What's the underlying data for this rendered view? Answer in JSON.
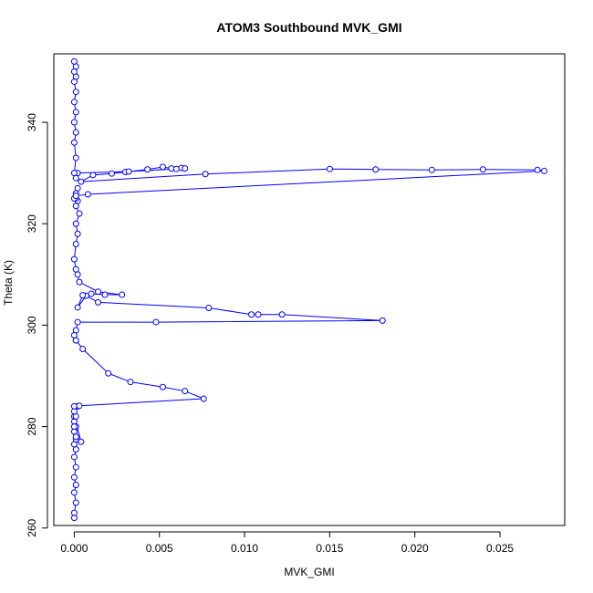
{
  "chart_data": {
    "type": "line",
    "title": "ATOM3 Southbound MVK_GMI",
    "xlabel": "MVK_GMI",
    "ylabel": "Theta (K)",
    "xlim": [
      -0.0012,
      0.0288
    ],
    "ylim": [
      260.5,
      353.5
    ],
    "x_ticks": [
      0.0,
      0.005,
      0.01,
      0.015,
      0.02,
      0.025
    ],
    "x_tick_labels": [
      "0.000",
      "0.005",
      "0.010",
      "0.015",
      "0.020",
      "0.025"
    ],
    "y_ticks": [
      260,
      280,
      300,
      320,
      340
    ],
    "y_tick_labels": [
      "260",
      "280",
      "300",
      "320",
      "340"
    ],
    "grid": false,
    "series": [
      {
        "color": "#0000ff",
        "marker": "open-circle",
        "x": [
          0.0,
          0.0,
          0.0001,
          0.0,
          0.0001,
          0.0,
          0.0001,
          0.0,
          0.0001,
          0.0,
          0.0001,
          0.0,
          0.0001,
          0.0,
          0.0,
          0.0004,
          0.0001,
          0.0,
          0.0001,
          0.0,
          0.0002,
          0.0,
          0.0003,
          0.0076,
          0.0065,
          0.0052,
          0.0033,
          0.002,
          0.0005,
          0.0001,
          0.0,
          0.0001,
          0.0002,
          0.0048,
          0.0181,
          0.0122,
          0.0108,
          0.0104,
          0.0079,
          0.0014,
          0.0007,
          0.0002,
          0.0005,
          0.001,
          0.0018,
          0.0028,
          0.0014,
          0.0003,
          0.0002,
          0.0001,
          0.0,
          0.0001,
          0.0002,
          0.0001,
          0.0003,
          0.0001,
          0.0002,
          0.0001,
          0.0002,
          0.0001,
          0.0,
          0.0001,
          0.0008,
          0.0276,
          0.0272,
          0.024,
          0.021,
          0.0177,
          0.015,
          0.0077,
          0.0004,
          0.0011,
          0.0022,
          0.003,
          0.0043,
          0.0052,
          0.0057,
          0.006,
          0.0063,
          0.0065,
          0.0032,
          0.0002,
          0.0001,
          0.0,
          0.0001,
          0.0,
          0.0001,
          0.0,
          0.0001,
          0.0,
          0.0001,
          0.0,
          0.0001,
          0.0,
          0.0001,
          0.0
        ],
        "y": [
          262.0,
          263.0,
          265.0,
          267.0,
          268.5,
          270.0,
          272.0,
          274.0,
          275.5,
          276.5,
          277.5,
          279.0,
          280.0,
          281.0,
          282.0,
          277.0,
          278.0,
          280.0,
          282.0,
          283.0,
          284.0,
          284.0,
          284.1,
          285.5,
          287.0,
          287.8,
          288.8,
          290.5,
          295.3,
          297.0,
          298.0,
          299.0,
          300.6,
          300.6,
          300.9,
          302.1,
          302.1,
          302.1,
          303.4,
          304.5,
          305.8,
          303.5,
          305.9,
          306.2,
          306.0,
          306.0,
          306.6,
          308.5,
          310.0,
          311.0,
          313.0,
          316.0,
          318.0,
          320.0,
          322.0,
          323.5,
          324.5,
          325.0,
          327.0,
          326.0,
          325.0,
          325.5,
          325.8,
          330.4,
          330.6,
          330.7,
          330.6,
          330.7,
          330.8,
          329.8,
          328.3,
          329.6,
          329.9,
          330.2,
          330.7,
          331.2,
          330.9,
          330.8,
          331.0,
          330.9,
          330.3,
          330.0,
          329.0,
          330.0,
          333.0,
          336.0,
          338.0,
          340.0,
          342.0,
          344.0,
          346.0,
          348.0,
          349.0,
          350.0,
          351.0,
          352.0
        ]
      }
    ]
  }
}
